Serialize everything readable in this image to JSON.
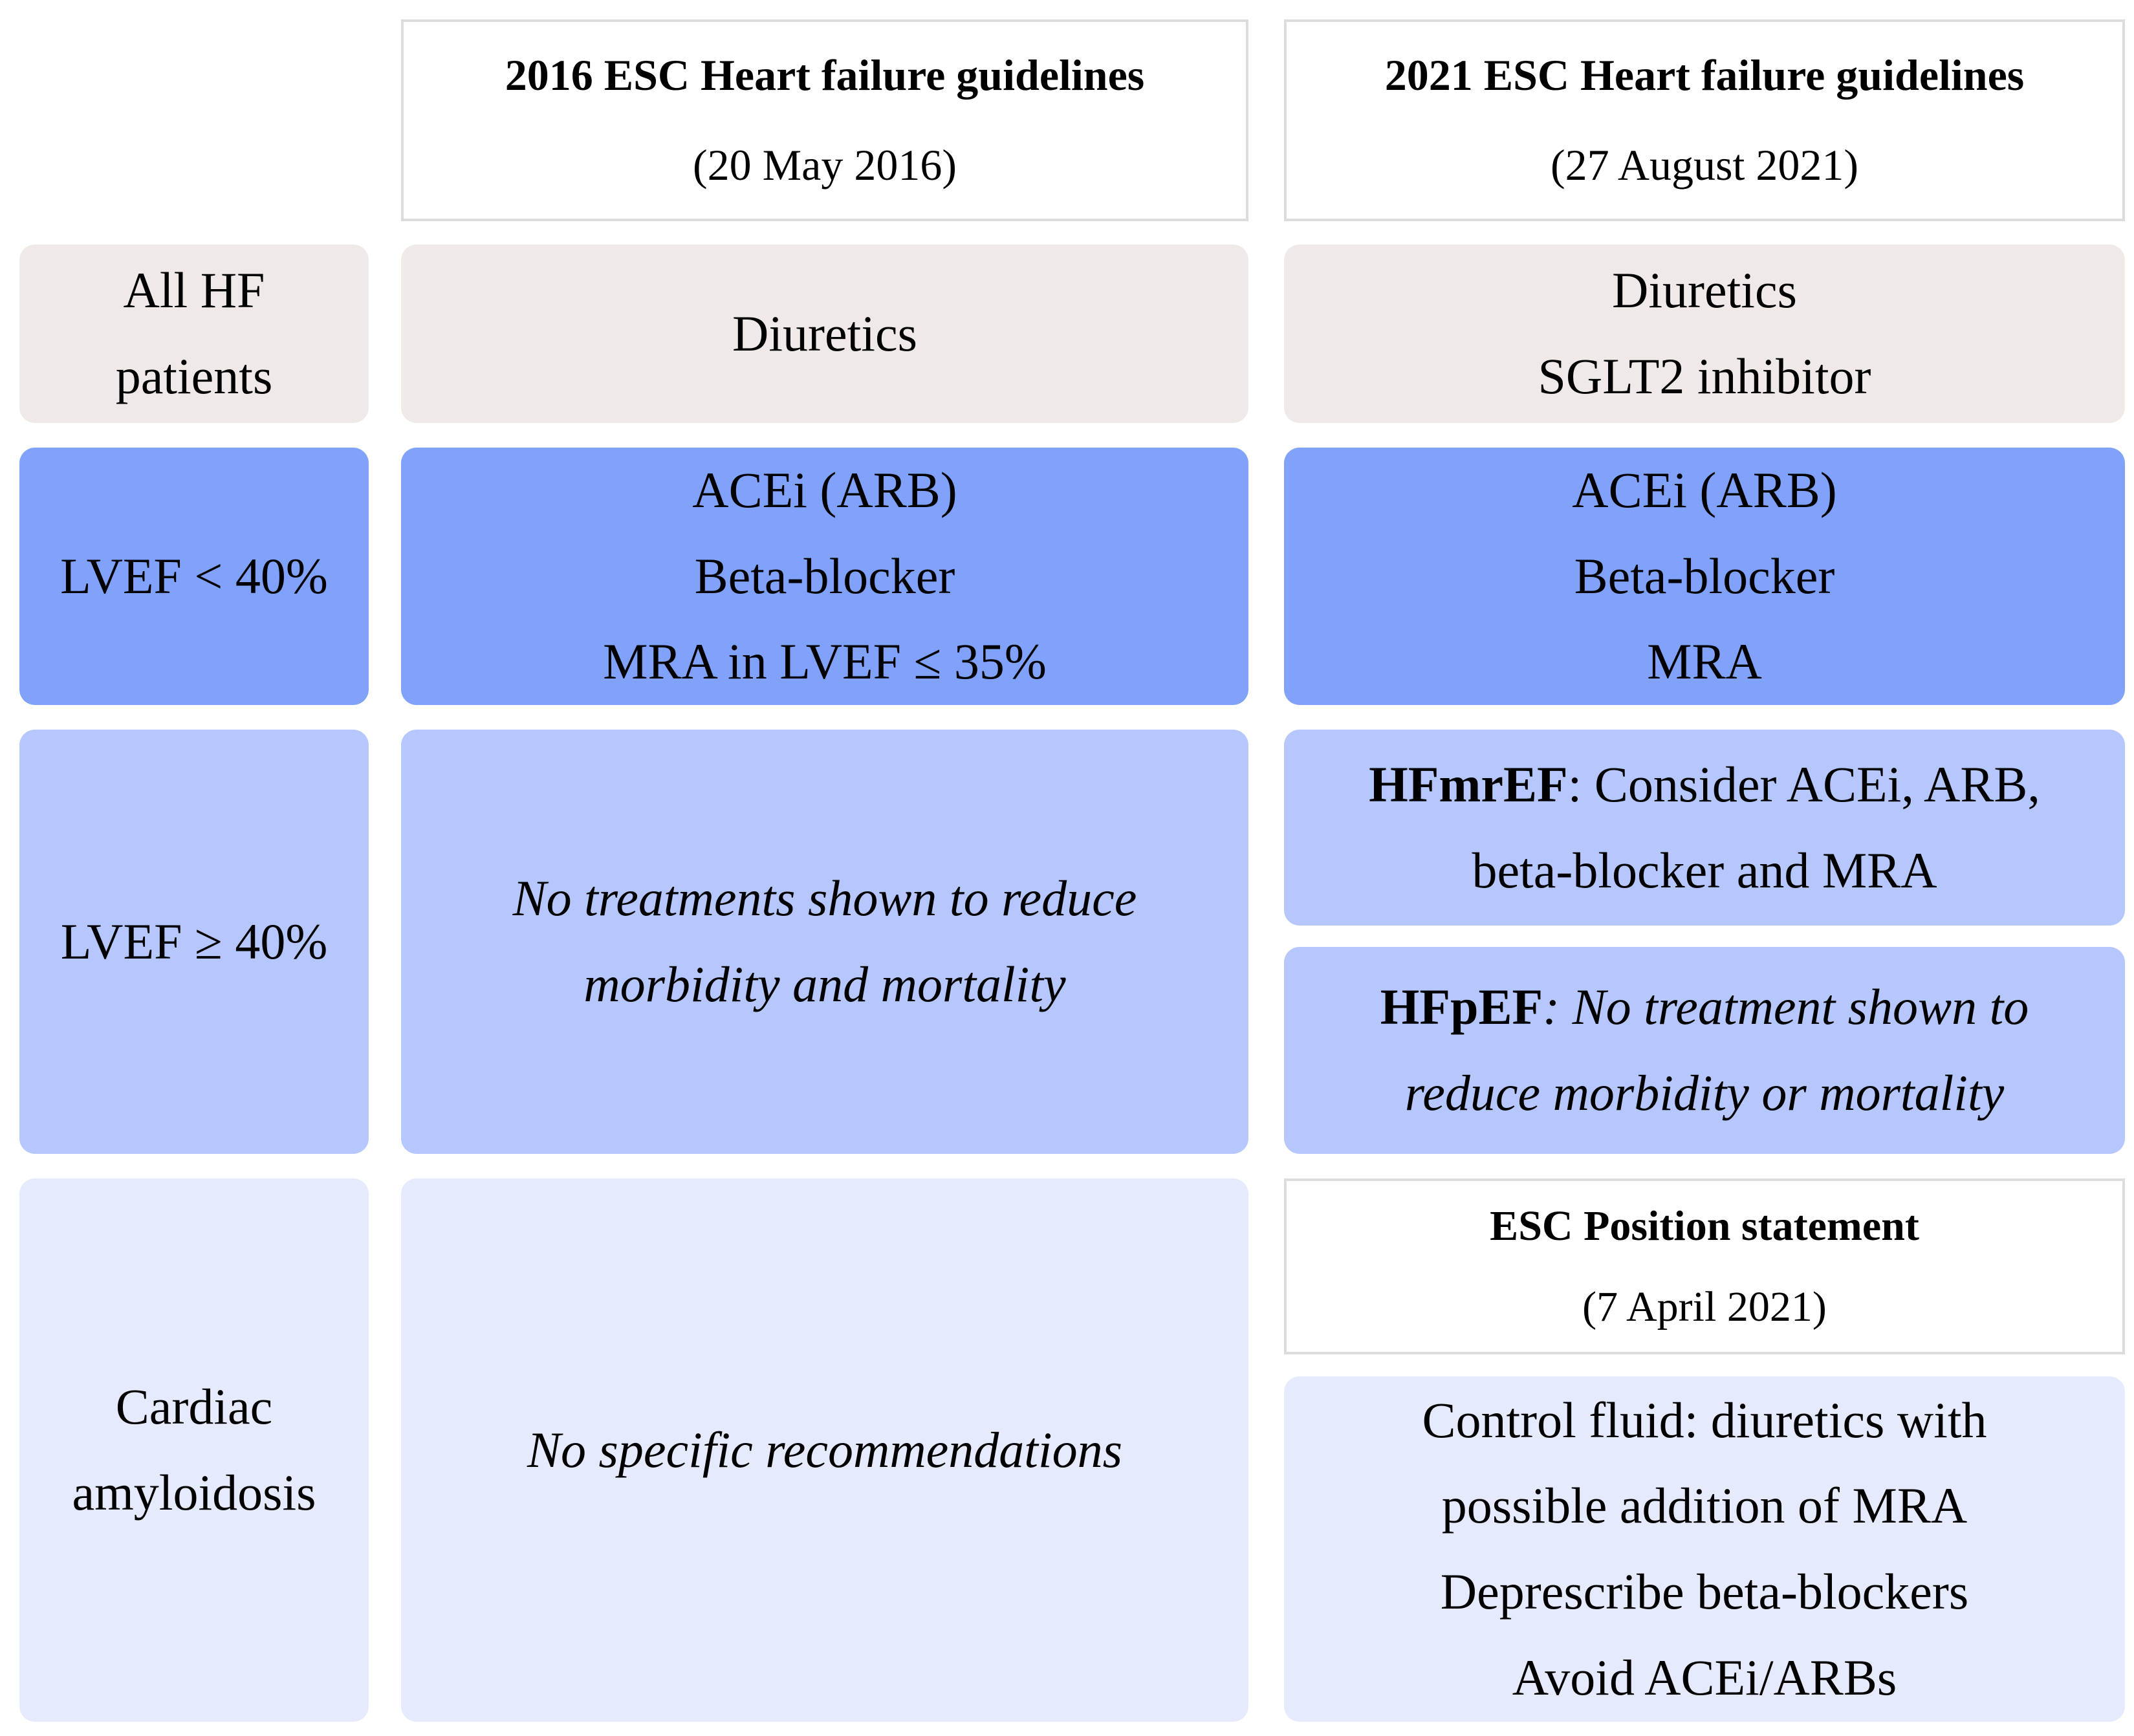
{
  "figure": {
    "columns": [
      {
        "title": "2016 ESC Heart failure guidelines",
        "date": "(20 May 2016)"
      },
      {
        "title": "2021 ESC Heart failure guidelines",
        "date": "(27 August 2021)"
      }
    ],
    "row_labels": [
      "All HF\npatients",
      "LVEF < 40%",
      "LVEF ≥ 40%",
      "Cardiac\namyloidosis"
    ],
    "cells": {
      "all_hf_2016": "Diuretics",
      "all_hf_2021": "Diuretics\nSGLT2 inhibitor",
      "lvef_lt40_2016": "ACEi (ARB)\nBeta-blocker\nMRA in LVEF ≤ 35%",
      "lvef_lt40_2021": "ACEi (ARB)\nBeta-blocker\nMRA",
      "lvef_ge40_2016": "No treatments shown to reduce\nmorbidity and mortality",
      "hfmref_prefix": "HFmrEF",
      "hfmref_rest": ": Consider ACEi, ARB,\nbeta-blocker and MRA",
      "hfpef_prefix": "HFpEF",
      "hfpef_rest": ": No treatment shown to\nreduce morbidity or mortality",
      "amyloid_2016": "No specific recommendations",
      "esc_position_title": "ESC Position statement",
      "esc_position_date": "(7 April 2021)",
      "amyloid_2021": "Control fluid: diuretics with\npossible addition of MRA\nDeprescribe beta-blockers\nAvoid ACEi/ARBs"
    },
    "colors": {
      "all_hf_row": "#efeae7",
      "lvef_lt40_row": "#80a2fa",
      "lvef_ge40_row": "#b5c7fc",
      "amyloidosis_row": "#e6eafd",
      "header_border": "#dcdcdc",
      "background": "#ffffff",
      "text": "#000000"
    }
  }
}
